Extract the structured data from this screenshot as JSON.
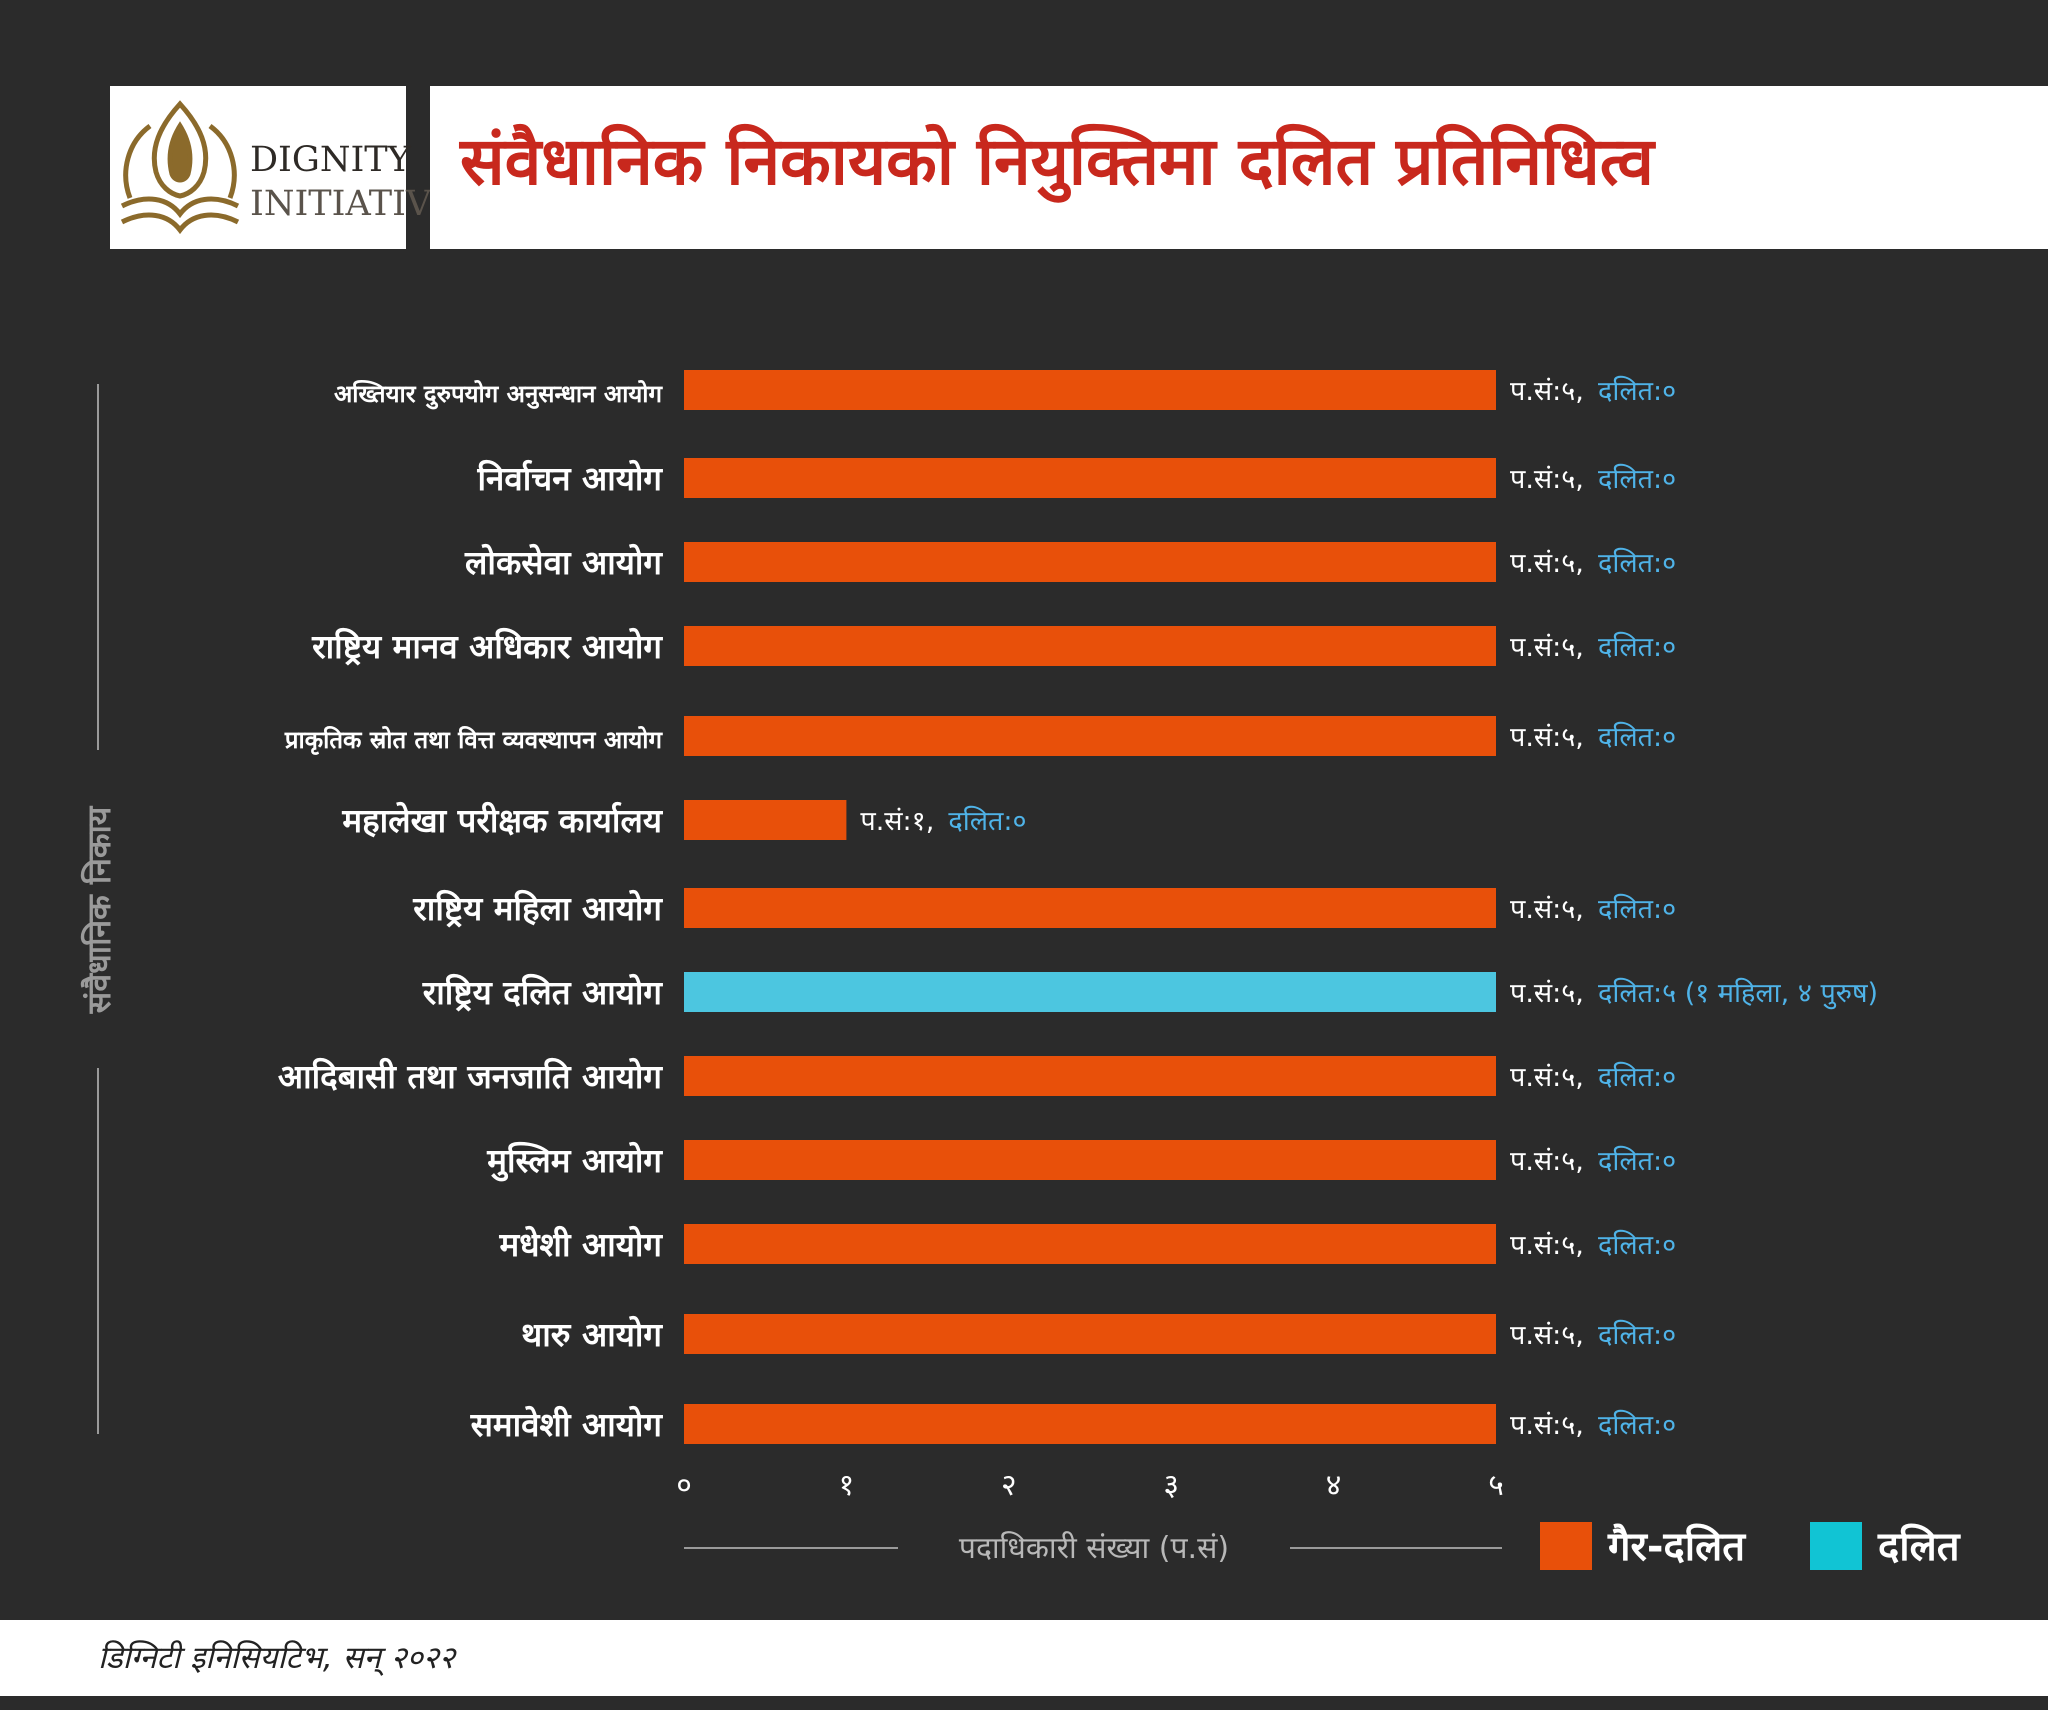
{
  "header": {
    "logo_line1": "DIGNITY",
    "logo_line2": "INITIATIVE",
    "title": "संवैधानिक निकायको नियुक्तिमा दलित प्रतिनिधित्व"
  },
  "footer": {
    "source": "डिग्निटी इनिसियटिभ, सन् २०२२"
  },
  "colors": {
    "background": "#2b2b2b",
    "non_dalit": "#e8500a",
    "dalit": "#4cc6e0",
    "title": "#c8281d",
    "annotation_dalit": "#4fb3e8"
  },
  "chart_data": {
    "type": "bar",
    "orientation": "horizontal",
    "categories": [
      "अख्तियार दुरुपयोग अनुसन्धान आयोग",
      "निर्वाचन आयोग",
      "लोकसेवा आयोग",
      "राष्ट्रिय मानव अधिकार आयोग",
      "प्राकृतिक स्रोत तथा वित्त व्यवस्थापन आयोग",
      "महालेखा परीक्षक कार्यालय",
      "राष्ट्रिय महिला आयोग",
      "राष्ट्रिय दलित आयोग",
      "आदिबासी तथा जनजाति आयोग",
      "मुस्लिम आयोग",
      "मधेशी आयोग",
      "थारु आयोग",
      "समावेशी आयोग"
    ],
    "series": [
      {
        "name": "गैर-दलित",
        "color": "#e8500a",
        "values": [
          5,
          5,
          5,
          5,
          5,
          1,
          5,
          0,
          5,
          5,
          5,
          5,
          5
        ]
      },
      {
        "name": "दलित",
        "color": "#4cc6e0",
        "values": [
          0,
          0,
          0,
          0,
          0,
          0,
          0,
          5,
          0,
          0,
          0,
          0,
          0
        ]
      }
    ],
    "annotations": [
      {
        "total": "प.सं:५,",
        "dalit": "दलित:०"
      },
      {
        "total": "प.सं:५,",
        "dalit": "दलित:०"
      },
      {
        "total": "प.सं:५,",
        "dalit": "दलित:०"
      },
      {
        "total": "प.सं:५,",
        "dalit": "दलित:०"
      },
      {
        "total": "प.सं:५,",
        "dalit": "दलित:०"
      },
      {
        "total": "प.सं:१,",
        "dalit": "दलित:०"
      },
      {
        "total": "प.सं:५,",
        "dalit": "दलित:०"
      },
      {
        "total": "प.सं:५,",
        "dalit": "दलित:५ (१ महिला, ४ पुरुष)"
      },
      {
        "total": "प.सं:५,",
        "dalit": "दलित:०"
      },
      {
        "total": "प.सं:५,",
        "dalit": "दलित:०"
      },
      {
        "total": "प.सं:५,",
        "dalit": "दलित:०"
      },
      {
        "total": "प.सं:५,",
        "dalit": "दलित:०"
      },
      {
        "total": "प.सं:५,",
        "dalit": "दलित:०"
      }
    ],
    "xticks": [
      "०",
      "१",
      "२",
      "३",
      "४",
      "५"
    ],
    "xlim": [
      0,
      5
    ],
    "xlabel": "पदाधिकारी संख्या (प.सं)",
    "ylabel": "संवैधानिक निकाय",
    "legend_position": "bottom-right",
    "grid": false
  }
}
